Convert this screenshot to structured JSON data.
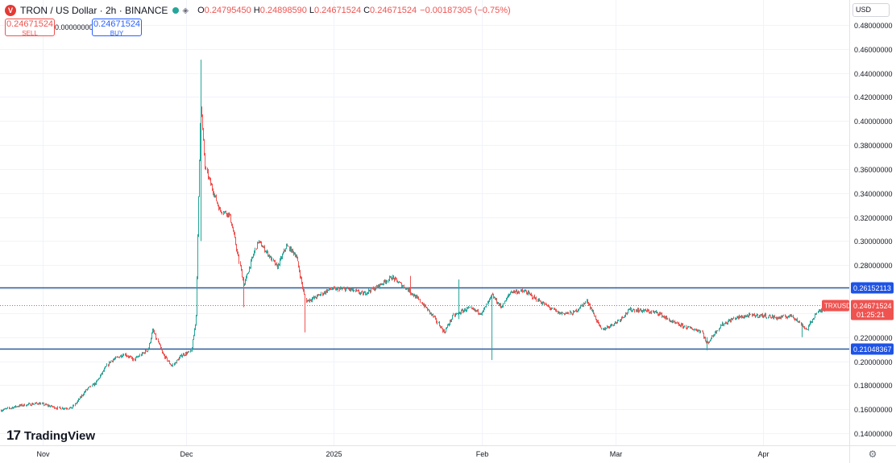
{
  "legend": {
    "logo_glyph": "V",
    "symbol": "TRON / US Dollar · 2h · BINANCE",
    "eye_glyph": "◈",
    "o_label": "O",
    "o_value": "0.24795450",
    "h_label": "H",
    "h_value": "0.24898590",
    "l_label": "L",
    "l_value": "0.24671524",
    "c_label": "C",
    "c_value": "0.24671524",
    "change": "−0.00187305 (−0.75%)"
  },
  "trade": {
    "sell_price": "0.24671524",
    "sell_label": "SELL",
    "spread": "0.00000000",
    "buy_price": "0.24671524",
    "buy_label": "BUY"
  },
  "currency": "USD",
  "brand": {
    "mark": "17",
    "name": "TradingView"
  },
  "colors": {
    "up": "#26a69a",
    "down": "#ef5350",
    "line": "#2a5a9c",
    "badge": "#1e53e5"
  },
  "chart_data": {
    "type": "candlestick",
    "ylim": [
      0.13,
      0.49
    ],
    "y_ticks": [
      "0.14000000",
      "0.16000000",
      "0.18000000",
      "0.20000000",
      "0.22000000",
      "0.24000000",
      "0.26000000",
      "0.28000000",
      "0.30000000",
      "0.32000000",
      "0.34000000",
      "0.36000000",
      "0.38000000",
      "0.40000000",
      "0.42000000",
      "0.44000000",
      "0.46000000",
      "0.48000000"
    ],
    "x_labels": [
      {
        "label": "Nov",
        "date": "2024-11-01"
      },
      {
        "label": "Dec",
        "date": "2024-12-01"
      },
      {
        "label": "2025",
        "date": "2025-01-01"
      },
      {
        "label": "Feb",
        "date": "2025-02-01"
      },
      {
        "label": "Mar",
        "date": "2025-03-01"
      },
      {
        "label": "Apr",
        "date": "2025-04-01"
      }
    ],
    "x_range": [
      "2024-10-23",
      "2025-04-19"
    ],
    "last_date": "2025-04-15",
    "horizontal_lines": [
      {
        "value": 0.26152113,
        "label": "0.26152113"
      },
      {
        "value": 0.21048367,
        "label": "0.21048367"
      }
    ],
    "current_price": {
      "value": 0.24671524,
      "symbol": "TRXUSD",
      "label": "0.24671524",
      "countdown": "01:25:21"
    },
    "price_path": [
      [
        "2024-10-23",
        0.159
      ],
      [
        "2024-10-27",
        0.163
      ],
      [
        "2024-10-31",
        0.165
      ],
      [
        "2024-11-04",
        0.161
      ],
      [
        "2024-11-07",
        0.161
      ],
      [
        "2024-11-10",
        0.176
      ],
      [
        "2024-11-12",
        0.182
      ],
      [
        "2024-11-15",
        0.2
      ],
      [
        "2024-11-18",
        0.206
      ],
      [
        "2024-11-20",
        0.201
      ],
      [
        "2024-11-23",
        0.21
      ],
      [
        "2024-11-24",
        0.226
      ],
      [
        "2024-11-26",
        0.206
      ],
      [
        "2024-11-28",
        0.196
      ],
      [
        "2024-11-30",
        0.205
      ],
      [
        "2024-12-02",
        0.208
      ],
      [
        "2024-12-03",
        0.236
      ],
      [
        "2024-12-04",
        0.418
      ],
      [
        "2024-12-05",
        0.36
      ],
      [
        "2024-12-06",
        0.348
      ],
      [
        "2024-12-08",
        0.326
      ],
      [
        "2024-12-10",
        0.322
      ],
      [
        "2024-12-11",
        0.305
      ],
      [
        "2024-12-13",
        0.263
      ],
      [
        "2024-12-16",
        0.3
      ],
      [
        "2024-12-18",
        0.29
      ],
      [
        "2024-12-20",
        0.278
      ],
      [
        "2024-12-22",
        0.296
      ],
      [
        "2024-12-24",
        0.288
      ],
      [
        "2024-12-26",
        0.25
      ],
      [
        "2024-12-28",
        0.253
      ],
      [
        "2024-12-31",
        0.26
      ],
      [
        "2025-01-04",
        0.26
      ],
      [
        "2025-01-07",
        0.256
      ],
      [
        "2025-01-10",
        0.262
      ],
      [
        "2025-01-13",
        0.27
      ],
      [
        "2025-01-16",
        0.261
      ],
      [
        "2025-01-19",
        0.25
      ],
      [
        "2025-01-22",
        0.236
      ],
      [
        "2025-01-24",
        0.224
      ],
      [
        "2025-01-26",
        0.238
      ],
      [
        "2025-01-29",
        0.244
      ],
      [
        "2025-02-01",
        0.24
      ],
      [
        "2025-02-03",
        0.255
      ],
      [
        "2025-02-05",
        0.245
      ],
      [
        "2025-02-07",
        0.258
      ],
      [
        "2025-02-10",
        0.258
      ],
      [
        "2025-02-13",
        0.25
      ],
      [
        "2025-02-17",
        0.24
      ],
      [
        "2025-02-20",
        0.24
      ],
      [
        "2025-02-23",
        0.25
      ],
      [
        "2025-02-26",
        0.226
      ],
      [
        "2025-03-01",
        0.232
      ],
      [
        "2025-03-04",
        0.243
      ],
      [
        "2025-03-07",
        0.242
      ],
      [
        "2025-03-10",
        0.24
      ],
      [
        "2025-03-13",
        0.232
      ],
      [
        "2025-03-16",
        0.228
      ],
      [
        "2025-03-19",
        0.225
      ],
      [
        "2025-03-20",
        0.214
      ],
      [
        "2025-03-23",
        0.23
      ],
      [
        "2025-03-26",
        0.236
      ],
      [
        "2025-03-29",
        0.238
      ],
      [
        "2025-04-01",
        0.238
      ],
      [
        "2025-04-04",
        0.236
      ],
      [
        "2025-04-07",
        0.238
      ],
      [
        "2025-04-10",
        0.226
      ],
      [
        "2025-04-12",
        0.24
      ],
      [
        "2025-04-15",
        0.2467
      ]
    ],
    "spikes": [
      {
        "date": "2024-12-04",
        "high": 0.451,
        "low": 0.3
      },
      {
        "date": "2024-12-13",
        "high": 0.27,
        "low": 0.245
      },
      {
        "date": "2024-12-26",
        "high": 0.253,
        "low": 0.224
      },
      {
        "date": "2025-01-17",
        "high": 0.271,
        "low": 0.255
      },
      {
        "date": "2025-01-27",
        "high": 0.268,
        "low": 0.235
      },
      {
        "date": "2025-02-03",
        "high": 0.25,
        "low": 0.201
      },
      {
        "date": "2025-03-20",
        "high": 0.22,
        "low": 0.209
      },
      {
        "date": "2025-04-09",
        "high": 0.232,
        "low": 0.22
      }
    ]
  }
}
